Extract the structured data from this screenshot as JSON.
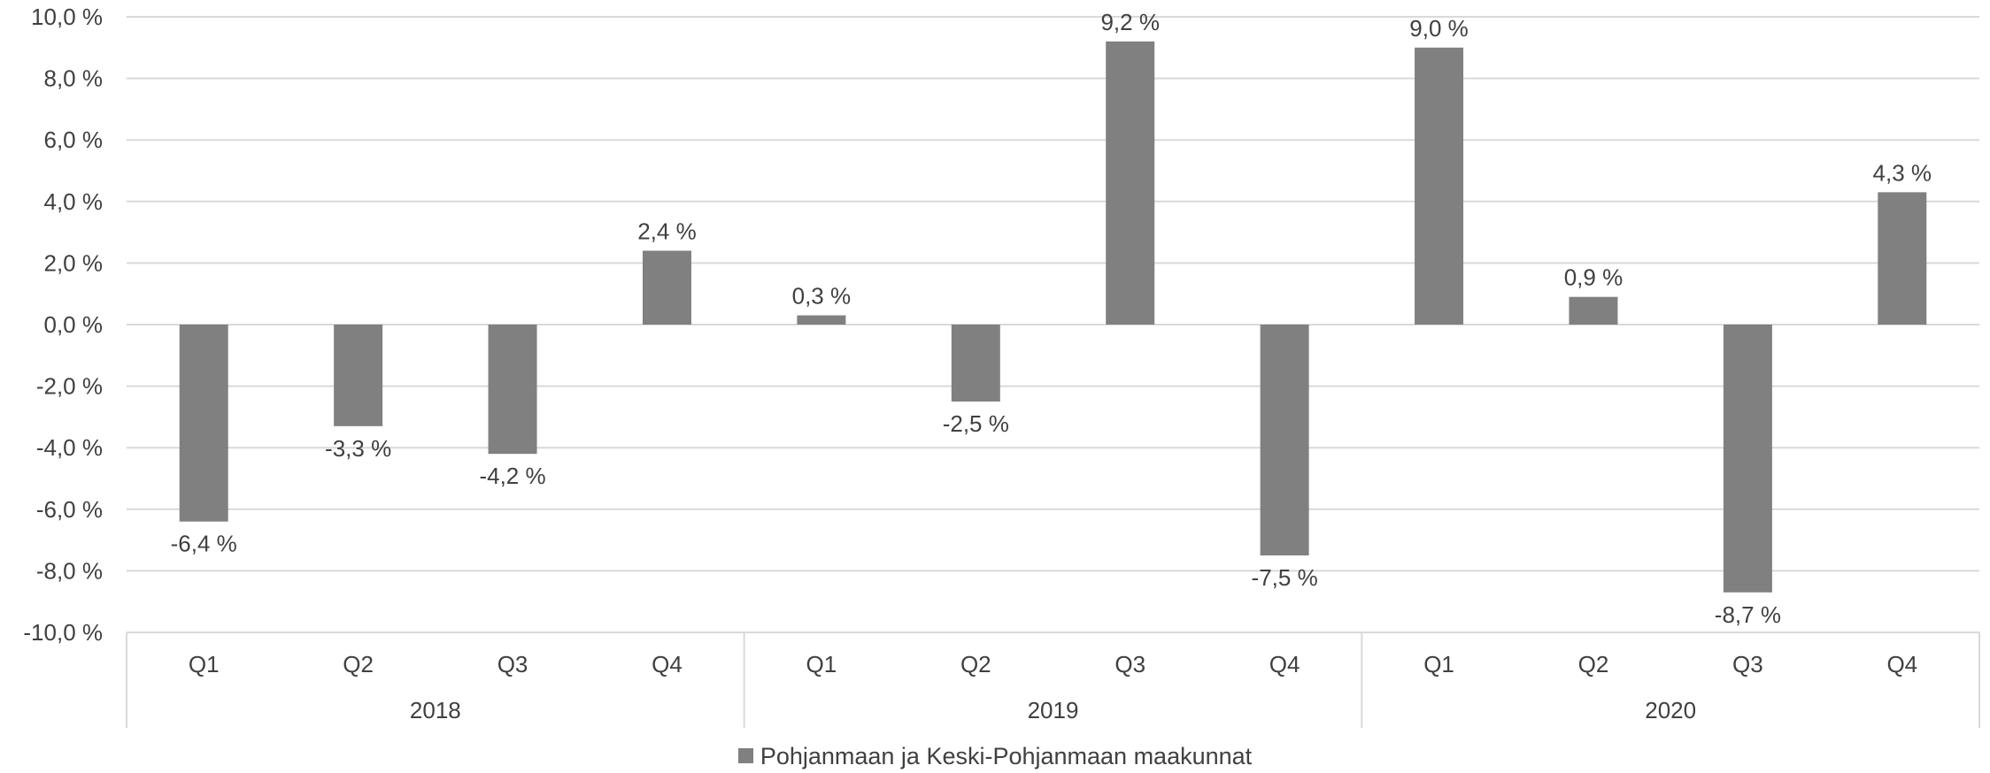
{
  "chart_data": {
    "type": "bar",
    "categories": [
      {
        "quarter": "Q1",
        "year": "2018"
      },
      {
        "quarter": "Q2",
        "year": "2018"
      },
      {
        "quarter": "Q3",
        "year": "2018"
      },
      {
        "quarter": "Q4",
        "year": "2018"
      },
      {
        "quarter": "Q1",
        "year": "2019"
      },
      {
        "quarter": "Q2",
        "year": "2019"
      },
      {
        "quarter": "Q3",
        "year": "2019"
      },
      {
        "quarter": "Q4",
        "year": "2019"
      },
      {
        "quarter": "Q1",
        "year": "2020"
      },
      {
        "quarter": "Q2",
        "year": "2020"
      },
      {
        "quarter": "Q3",
        "year": "2020"
      },
      {
        "quarter": "Q4",
        "year": "2020"
      }
    ],
    "groups": [
      "2018",
      "2019",
      "2020"
    ],
    "series": [
      {
        "name": "Pohjanmaan ja Keski-Pohjanmaan maakunnat",
        "color": "#808080",
        "values": [
          -6.4,
          -3.3,
          -4.2,
          2.4,
          0.3,
          -2.5,
          9.2,
          -7.5,
          9.0,
          0.9,
          -8.7,
          4.3
        ],
        "labels": [
          "-6,4 %",
          "-3,3 %",
          "-4,2 %",
          "2,4 %",
          "0,3 %",
          "-2,5 %",
          "9,2 %",
          "-7,5 %",
          "9,0 %",
          "0,9 %",
          "-8,7 %",
          "4,3 %"
        ]
      }
    ],
    "ylim": [
      -10,
      10
    ],
    "yticks": [
      10,
      8,
      6,
      4,
      2,
      0,
      -2,
      -4,
      -6,
      -8,
      -10
    ],
    "ytick_labels": [
      "10,0 %",
      "8,0 %",
      "6,0 %",
      "4,0 %",
      "2,0 %",
      "0,0 %",
      "-2,0 %",
      "-4,0 %",
      "-6,0 %",
      "-8,0 %",
      "-10,0 %"
    ],
    "grid": true,
    "legend_position": "bottom",
    "title": "",
    "xlabel": "",
    "ylabel": ""
  }
}
